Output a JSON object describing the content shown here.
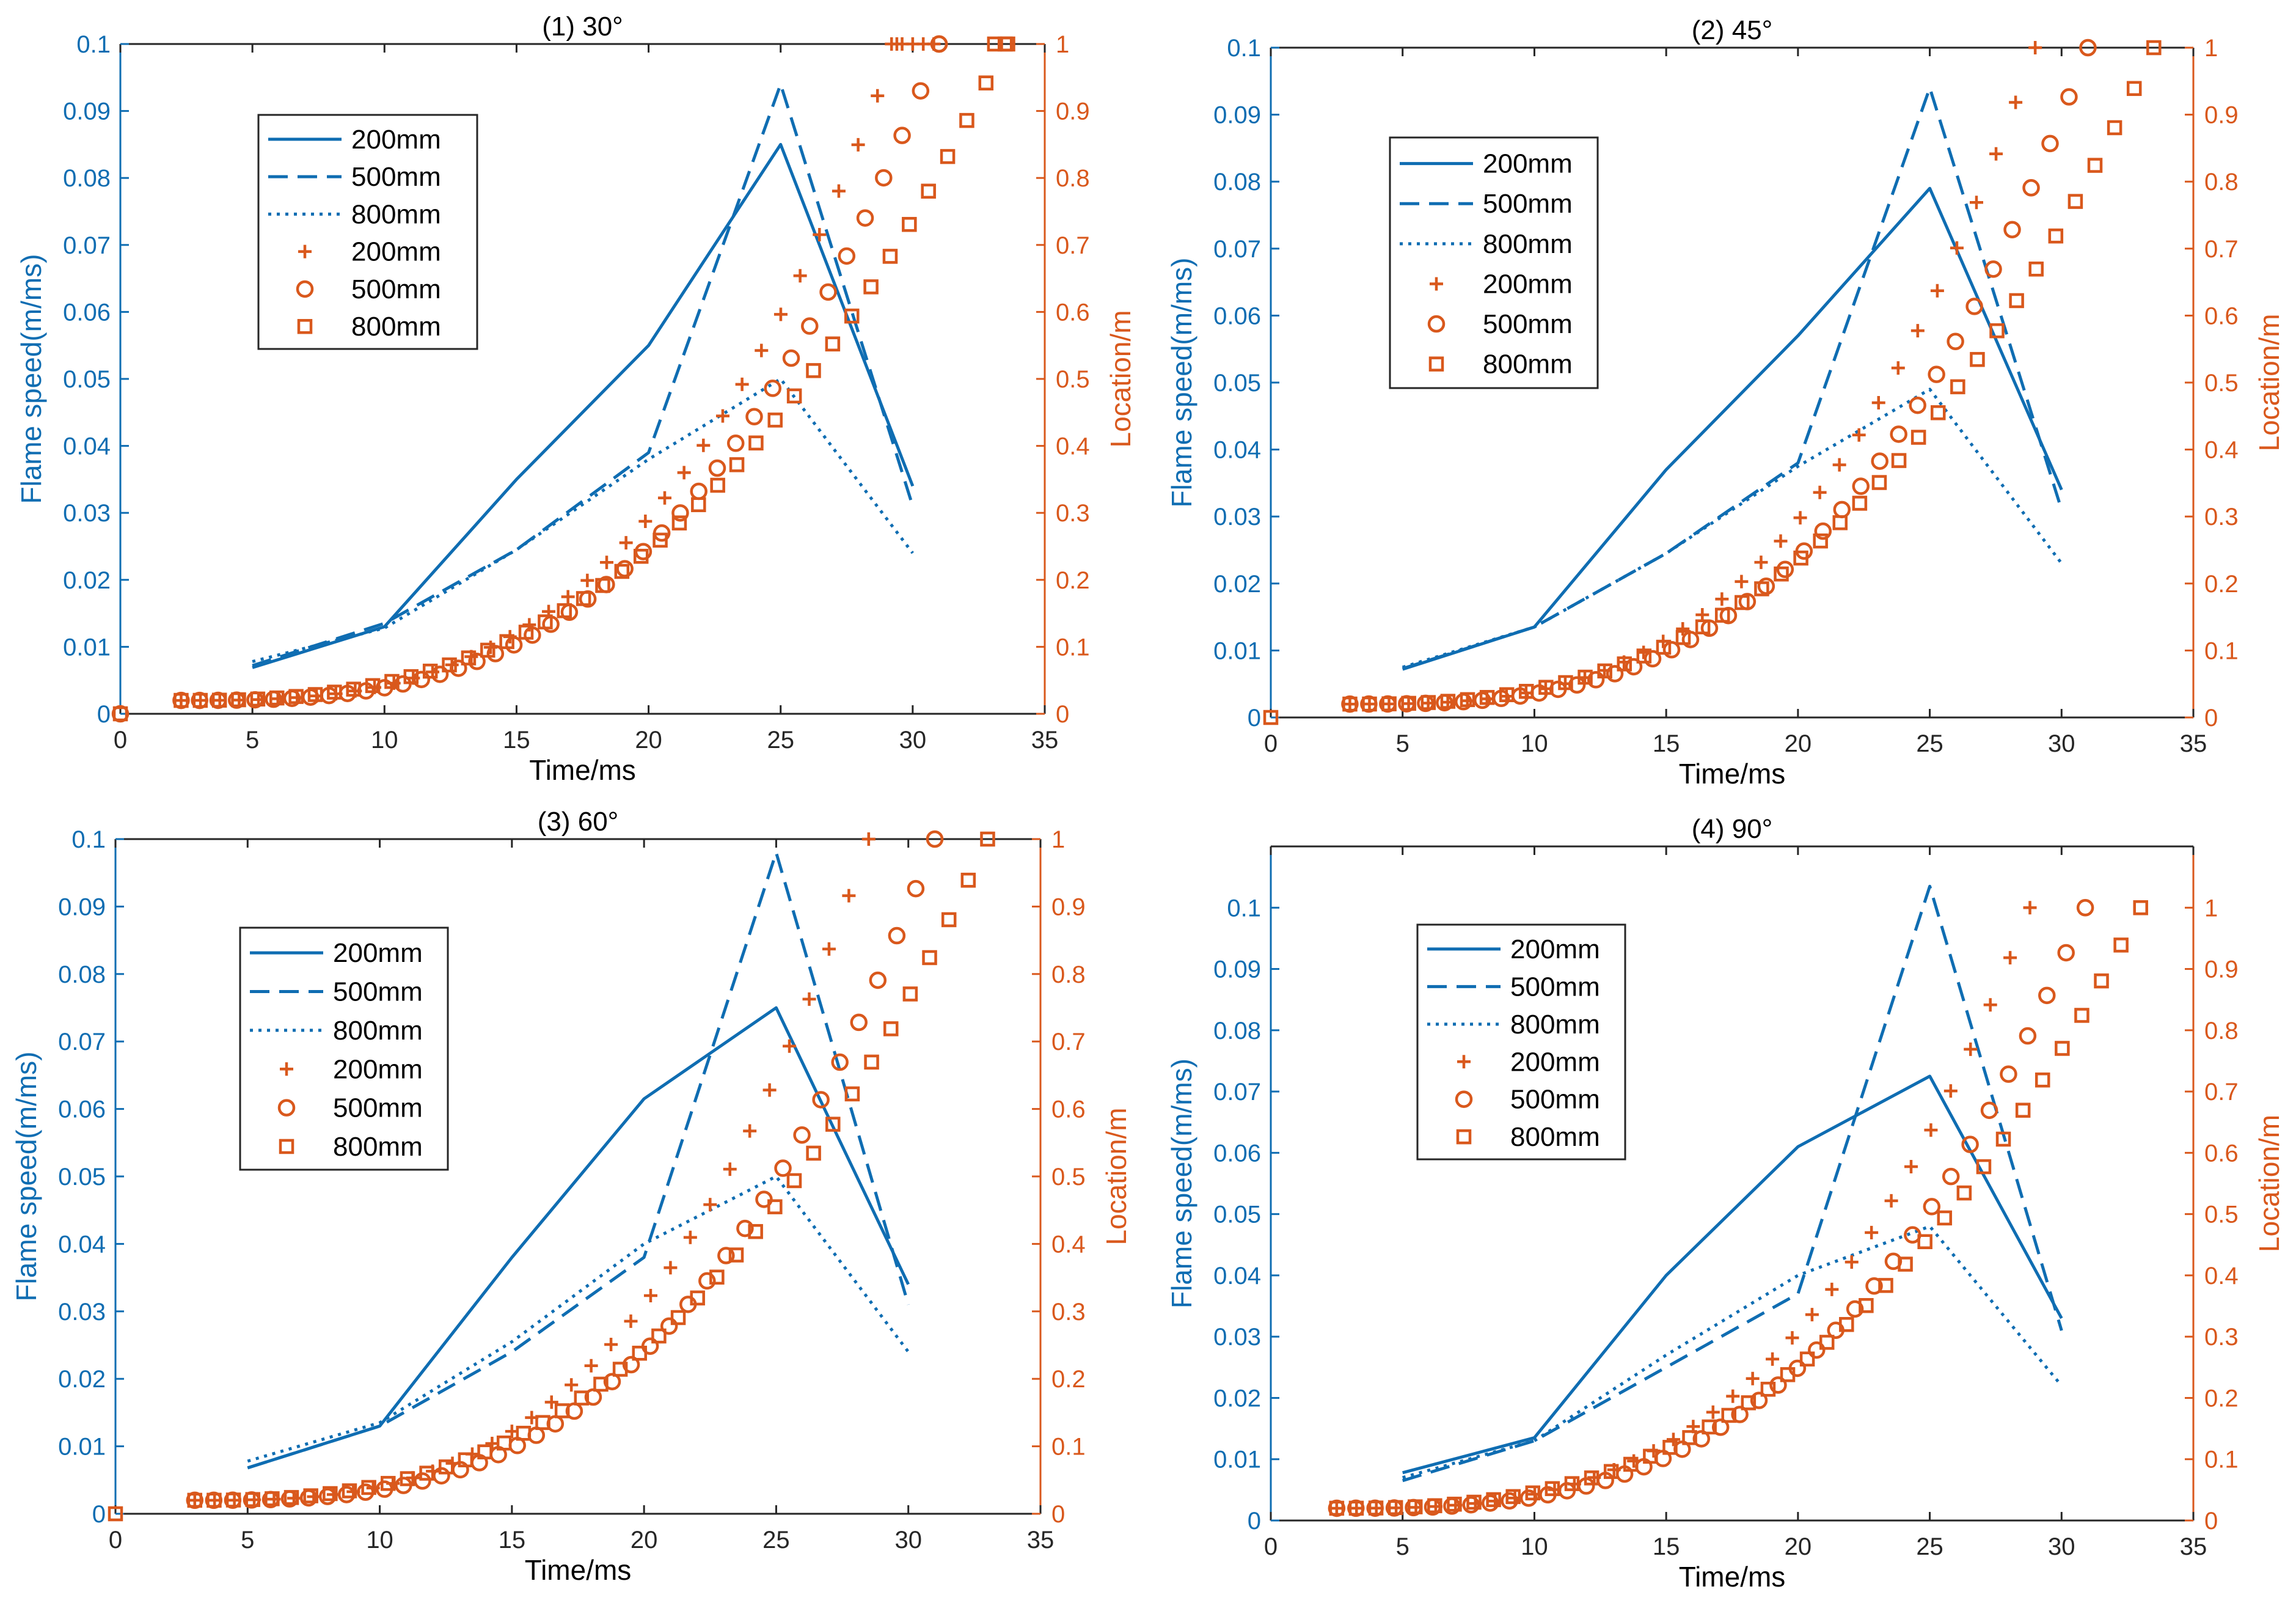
{
  "colors": {
    "speed": "#0F6DB2",
    "location": "#D9581C",
    "axis": "#262626"
  },
  "legend_labels": [
    "200mm",
    "500mm",
    "800mm",
    "200mm",
    "500mm",
    "800mm"
  ],
  "chart_data": [
    {
      "type": "line",
      "title": "(1) 30°",
      "xlabel": "Time/ms",
      "ylabel": "Flame speed(m/ms)",
      "y2label": "Location/m",
      "xlim": [
        0,
        35
      ],
      "ylim": [
        0,
        0.1
      ],
      "y2lim": [
        0,
        1
      ],
      "xticks": [
        "0",
        "5",
        "10",
        "15",
        "20",
        "25",
        "30",
        "35"
      ],
      "yticks": [
        "0",
        "0.01",
        "0.02",
        "0.03",
        "0.04",
        "0.05",
        "0.06",
        "0.07",
        "0.08",
        "0.09",
        "0.1"
      ],
      "y2ticks": [
        "0",
        "0.1",
        "0.2",
        "0.3",
        "0.4",
        "0.5",
        "0.6",
        "0.7",
        "0.8",
        "0.9",
        "1"
      ],
      "legend_position": "upper-left",
      "speed_series": [
        {
          "name": "200mm",
          "style": "solid",
          "x": [
            5,
            10,
            15,
            20,
            25,
            30
          ],
          "y": [
            0.0069,
            0.013,
            0.035,
            0.055,
            0.085,
            0.034
          ]
        },
        {
          "name": "500mm",
          "style": "dashed",
          "x": [
            5,
            10,
            15,
            20,
            25,
            30
          ],
          "y": [
            0.0072,
            0.0135,
            0.0245,
            0.039,
            0.094,
            0.031
          ]
        },
        {
          "name": "800mm",
          "style": "dotted",
          "x": [
            5,
            10,
            15,
            20,
            25,
            30
          ],
          "y": [
            0.0078,
            0.0128,
            0.0245,
            0.038,
            0.05,
            0.024
          ]
        }
      ],
      "location_series": [
        {
          "name": "200mm",
          "marker": "plus",
          "start": 2.3,
          "end": 29.4,
          "n": 38,
          "p": 3
        },
        {
          "name": "500mm",
          "marker": "circle",
          "start": 2.3,
          "end": 31.0,
          "n": 42,
          "p": 3
        },
        {
          "name": "800mm",
          "marker": "square",
          "start": 2.3,
          "end": 33.5,
          "n": 44,
          "p": 2.6
        }
      ],
      "origin_markers": [
        "circle",
        "square"
      ],
      "top_row_markers": [
        {
          "marker": "plus",
          "x": [
            29.2,
            29.6,
            30.0,
            30.4,
            30.8
          ]
        },
        {
          "marker": "circle",
          "x": [
            31.0
          ]
        },
        {
          "marker": "square",
          "x": [
            33.1,
            33.6
          ]
        }
      ]
    },
    {
      "type": "line",
      "title": "(2) 45°",
      "xlabel": "Time/ms",
      "ylabel": "Flame speed(m/ms)",
      "y2label": "Location/m",
      "xlim": [
        0,
        35
      ],
      "ylim": [
        0,
        0.1
      ],
      "y2lim": [
        0,
        1
      ],
      "xticks": [
        "0",
        "5",
        "10",
        "15",
        "20",
        "25",
        "30",
        "35"
      ],
      "yticks": [
        "0",
        "0.01",
        "0.02",
        "0.03",
        "0.04",
        "0.05",
        "0.06",
        "0.07",
        "0.08",
        "0.09",
        "0.1"
      ],
      "y2ticks": [
        "0",
        "0.1",
        "0.2",
        "0.3",
        "0.4",
        "0.5",
        "0.6",
        "0.7",
        "0.8",
        "0.9",
        "1"
      ],
      "legend_position": "upper-left",
      "speed_series": [
        {
          "name": "200mm",
          "style": "solid",
          "x": [
            5,
            10,
            15,
            20,
            25,
            30
          ],
          "y": [
            0.0072,
            0.0135,
            0.037,
            0.057,
            0.079,
            0.034
          ]
        },
        {
          "name": "500mm",
          "style": "dashed",
          "x": [
            5,
            10,
            15,
            20,
            25,
            30
          ],
          "y": [
            0.0073,
            0.0135,
            0.0245,
            0.038,
            0.094,
            0.031
          ]
        },
        {
          "name": "800mm",
          "style": "dotted",
          "x": [
            5,
            10,
            15,
            20,
            25,
            30
          ],
          "y": [
            0.0075,
            0.0135,
            0.0245,
            0.0375,
            0.049,
            0.023
          ]
        }
      ],
      "location_series": [
        {
          "name": "200mm",
          "marker": "plus",
          "start": 3.0,
          "end": 29.0,
          "n": 36,
          "p": 3
        },
        {
          "name": "500mm",
          "marker": "circle",
          "start": 3.0,
          "end": 31.0,
          "n": 40,
          "p": 3
        },
        {
          "name": "800mm",
          "marker": "square",
          "start": 3.0,
          "end": 33.5,
          "n": 42,
          "p": 2.6
        }
      ],
      "origin_markers": [
        "square"
      ],
      "top_row_markers": []
    },
    {
      "type": "line",
      "title": "(3) 60°",
      "xlabel": "Time/ms",
      "ylabel": "Flame speed(m/ms)",
      "y2label": "Location/m",
      "xlim": [
        0,
        35
      ],
      "ylim": [
        0,
        0.1
      ],
      "y2lim": [
        0,
        1
      ],
      "xticks": [
        "0",
        "5",
        "10",
        "15",
        "20",
        "25",
        "30",
        "35"
      ],
      "yticks": [
        "0",
        "0.01",
        "0.02",
        "0.03",
        "0.04",
        "0.05",
        "0.06",
        "0.07",
        "0.08",
        "0.09",
        "0.1"
      ],
      "y2ticks": [
        "0",
        "0.1",
        "0.2",
        "0.3",
        "0.4",
        "0.5",
        "0.6",
        "0.7",
        "0.8",
        "0.9",
        "1"
      ],
      "legend_position": "upper-left",
      "speed_series": [
        {
          "name": "200mm",
          "style": "solid",
          "x": [
            5,
            10,
            15,
            20,
            25,
            30
          ],
          "y": [
            0.0068,
            0.013,
            0.038,
            0.0615,
            0.075,
            0.034
          ]
        },
        {
          "name": "500mm",
          "style": "dashed",
          "x": [
            5,
            10,
            15,
            20,
            25,
            30
          ],
          "y": [
            0.0068,
            0.013,
            0.024,
            0.038,
            0.098,
            0.031
          ]
        },
        {
          "name": "800mm",
          "style": "dotted",
          "x": [
            5,
            10,
            15,
            20,
            25,
            30
          ],
          "y": [
            0.0078,
            0.0135,
            0.0255,
            0.04,
            0.05,
            0.024
          ]
        }
      ],
      "location_series": [
        {
          "name": "200mm",
          "marker": "plus",
          "start": 3.0,
          "end": 28.5,
          "n": 35,
          "p": 3
        },
        {
          "name": "500mm",
          "marker": "circle",
          "start": 3.0,
          "end": 31.0,
          "n": 40,
          "p": 3
        },
        {
          "name": "800mm",
          "marker": "square",
          "start": 3.0,
          "end": 33.0,
          "n": 42,
          "p": 2.6
        }
      ],
      "origin_markers": [
        "square"
      ],
      "top_row_markers": []
    },
    {
      "type": "line",
      "title": "(4) 90°",
      "xlabel": "Time/ms",
      "ylabel": "Flame speed(m/ms)",
      "y2label": "Location/m",
      "xlim": [
        0,
        35
      ],
      "ylim": [
        0,
        0.11
      ],
      "y2lim": [
        0,
        1.1
      ],
      "xticks": [
        "0",
        "5",
        "10",
        "15",
        "20",
        "25",
        "30",
        "35"
      ],
      "yticks": [
        "0",
        "0.01",
        "0.02",
        "0.03",
        "0.04",
        "0.05",
        "0.06",
        "0.07",
        "0.08",
        "0.09",
        "0.1"
      ],
      "y2ticks": [
        "0",
        "0.1",
        "0.2",
        "0.3",
        "0.4",
        "0.5",
        "0.6",
        "0.7",
        "0.8",
        "0.9",
        "1"
      ],
      "legend_position": "upper-left",
      "speed_series": [
        {
          "name": "200mm",
          "style": "solid",
          "x": [
            5,
            10,
            15,
            20,
            25,
            30
          ],
          "y": [
            0.0078,
            0.0135,
            0.04,
            0.061,
            0.0725,
            0.033
          ]
        },
        {
          "name": "500mm",
          "style": "dashed",
          "x": [
            5,
            10,
            15,
            20,
            25,
            30
          ],
          "y": [
            0.0065,
            0.013,
            0.025,
            0.037,
            0.1035,
            0.031
          ]
        },
        {
          "name": "800mm",
          "style": "dotted",
          "x": [
            5,
            10,
            15,
            20,
            25,
            30
          ],
          "y": [
            0.007,
            0.013,
            0.027,
            0.04,
            0.048,
            0.022
          ]
        }
      ],
      "location_series": [
        {
          "name": "200mm",
          "marker": "plus",
          "start": 2.5,
          "end": 28.8,
          "n": 36,
          "p": 3
        },
        {
          "name": "500mm",
          "marker": "circle",
          "start": 2.5,
          "end": 30.9,
          "n": 40,
          "p": 3
        },
        {
          "name": "800mm",
          "marker": "square",
          "start": 2.5,
          "end": 33.0,
          "n": 42,
          "p": 2.6
        }
      ],
      "origin_markers": [],
      "top_row_markers": []
    }
  ]
}
